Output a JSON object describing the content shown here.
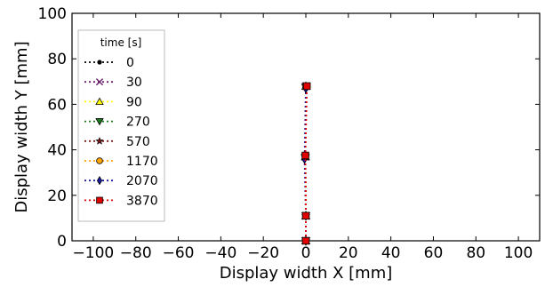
{
  "chart_data": {
    "type": "line",
    "xlabel": "Display width X [mm]",
    "ylabel": "Display width Y [mm]",
    "xlim": [
      -110,
      110
    ],
    "ylim": [
      0,
      100
    ],
    "xticks": [
      -100,
      -80,
      -60,
      -40,
      -20,
      0,
      20,
      40,
      60,
      80,
      100
    ],
    "xtick_labels": [
      "−100",
      "−80",
      "−60",
      "−40",
      "−20",
      "0",
      "20",
      "40",
      "60",
      "80",
      "100"
    ],
    "yticks": [
      0,
      20,
      40,
      60,
      80,
      100
    ],
    "ytick_labels": [
      "0",
      "20",
      "40",
      "60",
      "80",
      "100"
    ],
    "grid": false,
    "legend": {
      "title": "time [s]",
      "placement": "top-left"
    },
    "series": [
      {
        "name": "0",
        "color": "#000000",
        "marker": "dot",
        "x": [
          0,
          0,
          -0.2,
          0
        ],
        "y": [
          0,
          11,
          37,
          68
        ]
      },
      {
        "name": "30",
        "color": "#6a1f6a",
        "marker": "x",
        "x": [
          0,
          0,
          -0.2,
          0
        ],
        "y": [
          0,
          11,
          37,
          68
        ]
      },
      {
        "name": "90",
        "color": "#ffff00",
        "marker": "triangle-up",
        "x": [
          0,
          0,
          -0.2,
          0
        ],
        "y": [
          0,
          11,
          37,
          68
        ]
      },
      {
        "name": "270",
        "color": "#1a7a1a",
        "marker": "triangle-down",
        "x": [
          0,
          0,
          -0.3,
          0
        ],
        "y": [
          0,
          11,
          36.5,
          67.5
        ]
      },
      {
        "name": "570",
        "color": "#7a1a1a",
        "marker": "star",
        "x": [
          0,
          0,
          -0.2,
          0
        ],
        "y": [
          0,
          11,
          37,
          68
        ]
      },
      {
        "name": "1170",
        "color": "#ffa500",
        "marker": "circle",
        "x": [
          0,
          0,
          -0.2,
          0
        ],
        "y": [
          0,
          11,
          37,
          68
        ]
      },
      {
        "name": "2070",
        "color": "#1a1aa0",
        "marker": "diamond",
        "x": [
          0,
          0,
          -0.6,
          0
        ],
        "y": [
          0,
          11,
          36,
          67
        ]
      },
      {
        "name": "3870",
        "color": "#e00000",
        "marker": "square",
        "x": [
          0,
          0,
          -0.2,
          0.5
        ],
        "y": [
          0,
          11,
          37.5,
          68
        ]
      }
    ]
  }
}
